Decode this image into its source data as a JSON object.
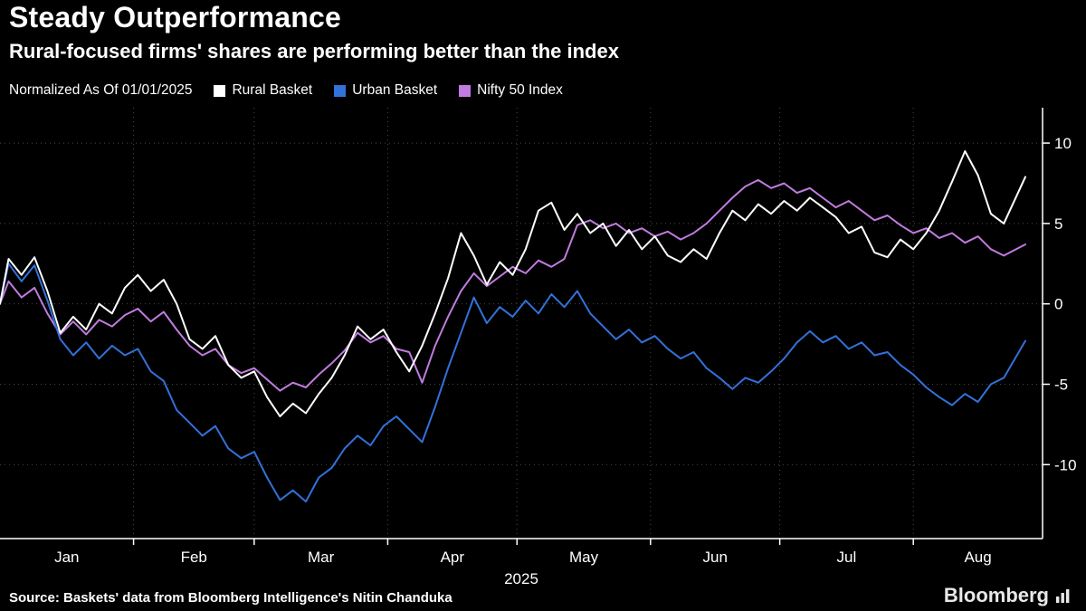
{
  "colors": {
    "background": "#000000",
    "text": "#ffffff",
    "grid": "#4a4a4a",
    "axis": "#ffffff"
  },
  "footer": {
    "source": "Source: Baskets' data from Bloomberg Intelligence's Nitin Chanduka",
    "logo_text": "Bloomberg"
  },
  "chart_data": {
    "type": "line",
    "title": "Steady Outperformance",
    "subtitle": "Rural-focused firms' shares are performing better than the index",
    "normalized_note": "Normalized As Of 01/01/2025",
    "x_unit": "days since 2025-01-01",
    "x_domain": [
      0,
      242
    ],
    "y_domain": [
      -14.6,
      12.2
    ],
    "y_ticks": [
      10,
      5,
      0,
      -5,
      -10
    ],
    "x_month_boundaries": [
      0,
      31,
      59,
      90,
      120,
      151,
      181,
      212,
      242
    ],
    "x_tick_labels": [
      {
        "label": "Jan",
        "day": 15.5
      },
      {
        "label": "Feb",
        "day": 45
      },
      {
        "label": "Mar",
        "day": 74.5
      },
      {
        "label": "Apr",
        "day": 105
      },
      {
        "label": "May",
        "day": 135.5
      },
      {
        "label": "Jun",
        "day": 166
      },
      {
        "label": "Jul",
        "day": 196.5
      },
      {
        "label": "Aug",
        "day": 227
      }
    ],
    "x_axis_year": "2025",
    "grid": "dotted",
    "legend_position": "top",
    "x": [
      0,
      2,
      5,
      8,
      11,
      14,
      17,
      20,
      23,
      26,
      29,
      32,
      35,
      38,
      41,
      44,
      47,
      50,
      53,
      56,
      59,
      62,
      65,
      68,
      71,
      74,
      77,
      80,
      83,
      86,
      89,
      92,
      95,
      98,
      101,
      104,
      107,
      110,
      113,
      116,
      119,
      122,
      125,
      128,
      131,
      134,
      137,
      140,
      143,
      146,
      149,
      152,
      155,
      158,
      161,
      164,
      167,
      170,
      173,
      176,
      179,
      182,
      185,
      188,
      191,
      194,
      197,
      200,
      203,
      206,
      209,
      212,
      215,
      218,
      221,
      224,
      227,
      230,
      233,
      238
    ],
    "series": [
      {
        "name": "Rural Basket",
        "color": "#ffffff",
        "values": [
          0.0,
          2.8,
          1.8,
          2.9,
          0.8,
          -1.8,
          -0.8,
          -1.6,
          0.0,
          -0.6,
          1.0,
          1.8,
          0.8,
          1.5,
          0.0,
          -2.2,
          -2.8,
          -2.0,
          -3.8,
          -4.6,
          -4.2,
          -5.8,
          -7.0,
          -6.2,
          -6.8,
          -5.6,
          -4.6,
          -3.2,
          -1.4,
          -2.2,
          -1.6,
          -3.0,
          -4.2,
          -2.6,
          -0.6,
          1.6,
          4.4,
          3.0,
          1.2,
          2.6,
          1.8,
          3.4,
          5.8,
          6.3,
          4.6,
          5.6,
          4.4,
          5.0,
          3.6,
          4.6,
          3.4,
          4.2,
          3.0,
          2.6,
          3.4,
          2.8,
          4.4,
          5.8,
          5.2,
          6.2,
          5.6,
          6.4,
          5.8,
          6.6,
          6.0,
          5.4,
          4.4,
          4.8,
          3.2,
          2.9,
          4.0,
          3.4,
          4.4,
          5.8,
          7.6,
          9.5,
          8.0,
          5.6,
          5.0,
          7.9
        ]
      },
      {
        "name": "Urban Basket",
        "color": "#3272d9",
        "values": [
          0.0,
          2.5,
          1.4,
          2.4,
          0.2,
          -2.2,
          -3.2,
          -2.4,
          -3.4,
          -2.6,
          -3.2,
          -2.8,
          -4.2,
          -4.8,
          -6.6,
          -7.4,
          -8.2,
          -7.6,
          -9.0,
          -9.6,
          -9.2,
          -10.8,
          -12.2,
          -11.6,
          -12.3,
          -10.8,
          -10.2,
          -9.0,
          -8.2,
          -8.8,
          -7.6,
          -7.0,
          -7.8,
          -8.6,
          -6.4,
          -4.0,
          -1.8,
          0.4,
          -1.2,
          -0.2,
          -0.8,
          0.2,
          -0.6,
          0.6,
          -0.2,
          0.8,
          -0.6,
          -1.4,
          -2.2,
          -1.6,
          -2.4,
          -2.0,
          -2.8,
          -3.4,
          -3.0,
          -4.0,
          -4.6,
          -5.3,
          -4.6,
          -4.9,
          -4.2,
          -3.4,
          -2.4,
          -1.7,
          -2.4,
          -2.0,
          -2.8,
          -2.4,
          -3.2,
          -3.0,
          -3.8,
          -4.4,
          -5.2,
          -5.8,
          -6.3,
          -5.6,
          -6.1,
          -5.0,
          -4.6,
          -2.3
        ]
      },
      {
        "name": "Nifty 50 Index",
        "color": "#c07ce0",
        "values": [
          0.0,
          1.4,
          0.4,
          1.0,
          -0.6,
          -1.9,
          -1.1,
          -1.9,
          -1.0,
          -1.4,
          -0.7,
          -0.3,
          -1.1,
          -0.5,
          -1.6,
          -2.6,
          -3.2,
          -2.8,
          -3.8,
          -4.3,
          -4.0,
          -4.7,
          -5.4,
          -4.9,
          -5.2,
          -4.4,
          -3.7,
          -2.9,
          -1.8,
          -2.4,
          -2.0,
          -2.8,
          -3.0,
          -4.9,
          -2.6,
          -0.8,
          0.8,
          1.9,
          1.1,
          1.7,
          2.3,
          1.9,
          2.7,
          2.3,
          2.8,
          4.9,
          5.2,
          4.7,
          5.0,
          4.4,
          4.7,
          4.2,
          4.5,
          4.0,
          4.4,
          5.0,
          5.8,
          6.6,
          7.3,
          7.7,
          7.2,
          7.5,
          6.9,
          7.2,
          6.6,
          6.0,
          6.4,
          5.8,
          5.2,
          5.5,
          4.9,
          4.4,
          4.7,
          4.1,
          4.4,
          3.8,
          4.2,
          3.4,
          3.0,
          3.7
        ]
      }
    ]
  }
}
